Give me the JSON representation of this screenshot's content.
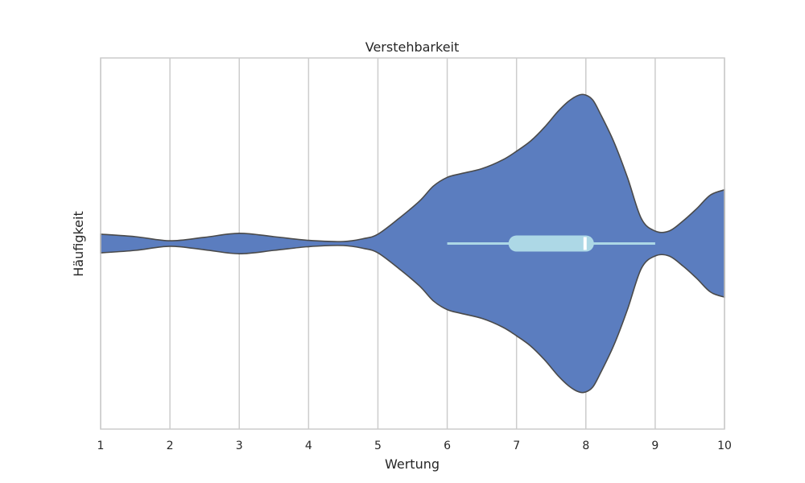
{
  "chart_data": {
    "type": "violin",
    "orientation": "horizontal",
    "title": "Verstehbarkeit",
    "xlabel": "Wertung",
    "ylabel": "Häufigkeit",
    "xlim": [
      1,
      10
    ],
    "xticks": [
      "1",
      "2",
      "3",
      "4",
      "5",
      "6",
      "7",
      "8",
      "9",
      "10"
    ],
    "grid": "vertical",
    "colors": {
      "violin_fill": "#5b7dbf",
      "violin_edge": "#4a4a4a",
      "box_fill": "#add8e6",
      "whisker": "#add8e6",
      "median": "#ffffff",
      "grid": "#cccccc",
      "frame": "#cccccc"
    },
    "density": {
      "x": [
        1.0,
        1.5,
        2.0,
        2.5,
        3.0,
        3.5,
        4.0,
        4.5,
        4.8,
        5.0,
        5.3,
        5.6,
        5.8,
        6.0,
        6.2,
        6.5,
        6.8,
        7.0,
        7.2,
        7.4,
        7.6,
        7.75,
        7.9,
        8.0,
        8.1,
        8.2,
        8.4,
        8.6,
        8.8,
        9.0,
        9.2,
        9.4,
        9.6,
        9.8,
        10.0
      ],
      "width": [
        0.075,
        0.055,
        0.022,
        0.05,
        0.082,
        0.055,
        0.025,
        0.016,
        0.04,
        0.075,
        0.2,
        0.34,
        0.46,
        0.53,
        0.56,
        0.6,
        0.67,
        0.74,
        0.82,
        0.93,
        1.06,
        1.14,
        1.19,
        1.19,
        1.15,
        1.05,
        0.82,
        0.53,
        0.2,
        0.1,
        0.1,
        0.18,
        0.28,
        0.39,
        0.43
      ]
    },
    "box": {
      "whisker_low": 6,
      "q1": 7,
      "median": 8,
      "q3": 8,
      "whisker_high": 9
    }
  }
}
